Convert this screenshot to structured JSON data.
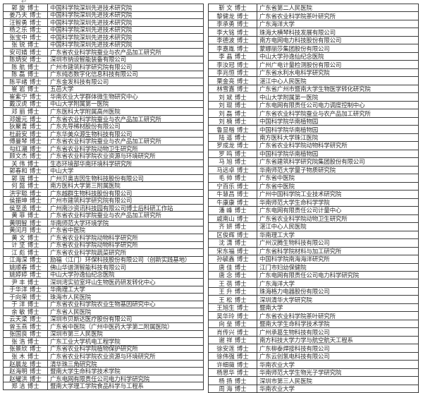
{
  "degree_label": "博士",
  "decoration": {
    "paragraph_mark": "↵"
  },
  "left_table": {
    "rows": [
      {
        "name": "郭 旋",
        "org": "中国科学院深圳先进技术研究院"
      },
      {
        "name": "姜乃夫",
        "org": "中国科学院深圳先进技术研究院"
      },
      {
        "name": "汪智勇",
        "org": "中国科学院深圳先进技术研究院"
      },
      {
        "name": "杨之乐",
        "org": "中国科学院深圳先进技术研究院"
      },
      {
        "name": "张宝中",
        "org": "中国科学院深圳先进技术研究院"
      },
      {
        "name": "张 锐",
        "org": "中国科学院深圳先进技术研究院"
      },
      {
        "name": "安可婧",
        "org": "广东省农业科学院蚕业与农产品加工研究所"
      },
      {
        "name": "陈炳安",
        "org": "深圳市纳设智能装备有限公司"
      },
      {
        "name": "陈 航",
        "org": "广州市建筑科学研究院有限公司"
      },
      {
        "name": "陈 磊",
        "org": "广东纯态数字化信息科技有限公司"
      },
      {
        "name": "陈平绪",
        "org": "广东金发科技有限公司"
      },
      {
        "name": "崔 岩",
        "org": "五邑大学"
      },
      {
        "name": "崔紫宁",
        "org": "华南农业大学群体微生物研究中心"
      },
      {
        "name": "戴汉虎",
        "org": "中山大学附属第一医院"
      },
      {
        "name": "邓 丽",
        "org": "广东医科大学附属高州医院"
      },
      {
        "name": "邓媛元",
        "org": "广东省农业科学院蚕业与农产品加工研究所"
      },
      {
        "name": "狄聚青",
        "org": "广东先导稀材股份有限公司"
      },
      {
        "name": "杜蔚安",
        "org": "广东华美众源生物科技有限公司"
      },
      {
        "name": "傅曼琴",
        "org": "广东省农业科学院蚕业与农产品加工研究所"
      },
      {
        "name": "勾红潮",
        "org": "广东省农业科学院动物卫生研究所"
      },
      {
        "name": "顾文杰",
        "org": "广东省农业科学院农业资源与环境研究所"
      },
      {
        "name": "关 伟",
        "org": "生态环境部华南环境科学研究所"
      },
      {
        "name": "郭春和",
        "org": "中山大学"
      },
      {
        "name": "郭 瑞",
        "org": "广州贝奥吉因生物科技股份有限公司"
      },
      {
        "name": "何 懿",
        "org": "南方医科大学第三附属医院"
      },
      {
        "name": "洪宇聪",
        "org": "广东越群生物科技股份有限公司"
      },
      {
        "name": "侯振坤",
        "org": "广州市建筑科学研究院有限公司"
      },
      {
        "name": "侯至丞",
        "org": "广州南沙资讯科技园有限公司博士后科研工作站"
      },
      {
        "name": "黄 菲",
        "org": "广东省农业科学院蚕业与农产品加工研究所"
      },
      {
        "name": "黄明智",
        "org": "华南师范大学环境学院"
      },
      {
        "name": "黄闰月",
        "org": "广东省中医院"
      },
      {
        "name": "黄 文",
        "org": "广东省农业科学院动物科学研究所"
      },
      {
        "name": "计 坚",
        "org": "广东省农业科学院动物科学研究所"
      },
      {
        "name": "江 彪",
        "org": "广东省农业科学院蔬菜研究所"
      },
      {
        "name": "江海深",
        "org": "励福（江门）环保科技股份有限公司（创新实践基地）"
      },
      {
        "name": "姚顺春",
        "org": "佛山华谱测智能科技有限公司"
      },
      {
        "name": "姚婷婷",
        "org": "中山大学孙逸仙纪念医院"
      },
      {
        "name": "尹 丰",
        "org": "深圳湾实验室坪山生物医药研发转化中心"
      },
      {
        "name": "于华洋",
        "org": "华南理工大学"
      },
      {
        "name": "于向荣",
        "org": "珠海市人民医院"
      },
      {
        "name": "于 洋",
        "org": "广东省农业科学院农业生物基因研究中心"
      },
      {
        "name": "余 敏",
        "org": "广东省人民医院"
      },
      {
        "name": "云天梁",
        "org": "深圳市贝斯达医疗股份有限公司"
      },
      {
        "name": "曾玉燕",
        "org": "广东省中医院（广州中医药大学第二附属医院）"
      },
      {
        "name": "张国良",
        "org": "深圳市第三人民医院"
      },
      {
        "name": "张 浩",
        "org": "广东工业大学机电工程学院"
      },
      {
        "name": "张景欣",
        "org": "广东省农业科学院植物保护研究所"
      },
      {
        "name": "张 木",
        "org": "广东省农业科学院农业资源与环境研究所"
      },
      {
        "name": "赵晨龙",
        "org": "清华珠三角研究院"
      },
      {
        "name": "赵海明",
        "org": "暨南大学生命科学技术学院"
      },
      {
        "name": "赵耀洪",
        "org": "广东电网有限责任公司电力科学研究院"
      },
      {
        "name": "郑 洁",
        "org": "暨南大学理工学院食品科学与工程系"
      }
    ]
  },
  "right_table": {
    "rows": [
      {
        "name": "靳 文",
        "org": "广东省第二人民医院"
      },
      {
        "name": "黎健龙",
        "org": "广东省农业科学院茶叶研究所"
      },
      {
        "name": "李承勇",
        "org": "广东海洋大学"
      },
      {
        "name": "李大铭",
        "org": "珠海大横琴科技发展有限公司"
      },
      {
        "name": "李德波",
        "org": "南方电网电力科技股份有限公司"
      },
      {
        "name": "李嘉胤",
        "org": "蒙娜丽莎集团股份有限公司"
      },
      {
        "name": "李 晶",
        "org": "中山大学孙逸仙纪念医院"
      },
      {
        "name": "李汝冠",
        "org": "广州广电计量检测股份有限公司"
      },
      {
        "name": "李兆恒",
        "org": "广东省水利水电科学研究院"
      },
      {
        "name": "栗金亮",
        "org": "湛江中心人民医院"
      },
      {
        "name": "林雪嘉",
        "org": "广东省广州市暨南大学生物医学转化研究院"
      },
      {
        "name": "刘 斌",
        "org": "中山大学附属第一医院"
      },
      {
        "name": "刘 琨",
        "org": "广东电网有限责任公司电力调度控制中心"
      },
      {
        "name": "刘 磊",
        "org": "广东省农业科学院蚕业与农产品加工研究所"
      },
      {
        "name": "刘 楠",
        "org": "中国科学院华南植物园"
      },
      {
        "name": "鲁显楷",
        "org": "中国科学院华南植物园"
      },
      {
        "name": "陆 遥",
        "org": "南方医科大学珠江医院"
      },
      {
        "name": "罗成龙",
        "org": "广东省农业科学院动物科学研究所"
      },
      {
        "name": "罗 鸣",
        "org": "中国科学院华南植物园"
      },
      {
        "name": "马 旭",
        "org": "广东省建筑科学研究院集团股份有限公司"
      },
      {
        "name": "马远卓",
        "org": "华南师范大学量子物质研究院"
      },
      {
        "name": "毛 帅",
        "org": "广东省中医院"
      },
      {
        "name": "宁百乐",
        "org": "广东省中医院"
      },
      {
        "name": "牛慧昌",
        "org": "广州中国科学院工业技术研究院"
      },
      {
        "name": "牛康康",
        "org": "华南师范大学生命科学学院"
      },
      {
        "name": "潘 峰",
        "org": "广东电网有限责任公司计量中心"
      },
      {
        "name": "戚南山",
        "org": "广东省农业科学院动物卫生研究所"
      },
      {
        "name": "齐 妍",
        "org": "湛江中心人民医院"
      },
      {
        "name": "区俊辉",
        "org": "华南理工大学"
      },
      {
        "name": "沈 潇",
        "org": "广州汉腾生物科技有限公司"
      },
      {
        "name": "宋东福",
        "org": "广东省科学院材料与加工研究所"
      },
      {
        "name": "孙毓鑫",
        "org": "中国科学院南海海洋研究所"
      },
      {
        "name": "唐 佳",
        "org": "江门市妇幼保健院"
      },
      {
        "name": "唐 念",
        "org": "广东电网有限责任公司电力科学研究院"
      },
      {
        "name": "王 蓓",
        "org": "广东海洋大学"
      },
      {
        "name": "王 升",
        "org": "珠海格力电器股份有限公司"
      },
      {
        "name": "王 松",
        "org": "深圳清华大学研究院"
      },
      {
        "name": "王旭生",
        "org": "暨南大学"
      },
      {
        "name": "吴华玲",
        "org": "广东省农业科学院茶叶研究所"
      },
      {
        "name": "向 垒",
        "org": "暨南大学生命科学技术学院"
      },
      {
        "name": "肖传兴",
        "org": "广州承葛生物科技有限公司"
      },
      {
        "name": "谢 祥",
        "org": "南方科技大学力学与航空航天工程系"
      },
      {
        "name": "徐安莲",
        "org": "广东柳泰焊接科技有限公司"
      },
      {
        "name": "徐伟强",
        "org": "广东云创氢电科技有限公司"
      },
      {
        "name": "许细薇",
        "org": "华南农业大学"
      },
      {
        "name": "杨思华",
        "org": "华南师范大学生物光子学研究院"
      },
      {
        "name": "杨 扬",
        "org": "深圳市第三人民医院"
      },
      {
        "name": "周 海",
        "org": "华南农业大学"
      }
    ]
  }
}
